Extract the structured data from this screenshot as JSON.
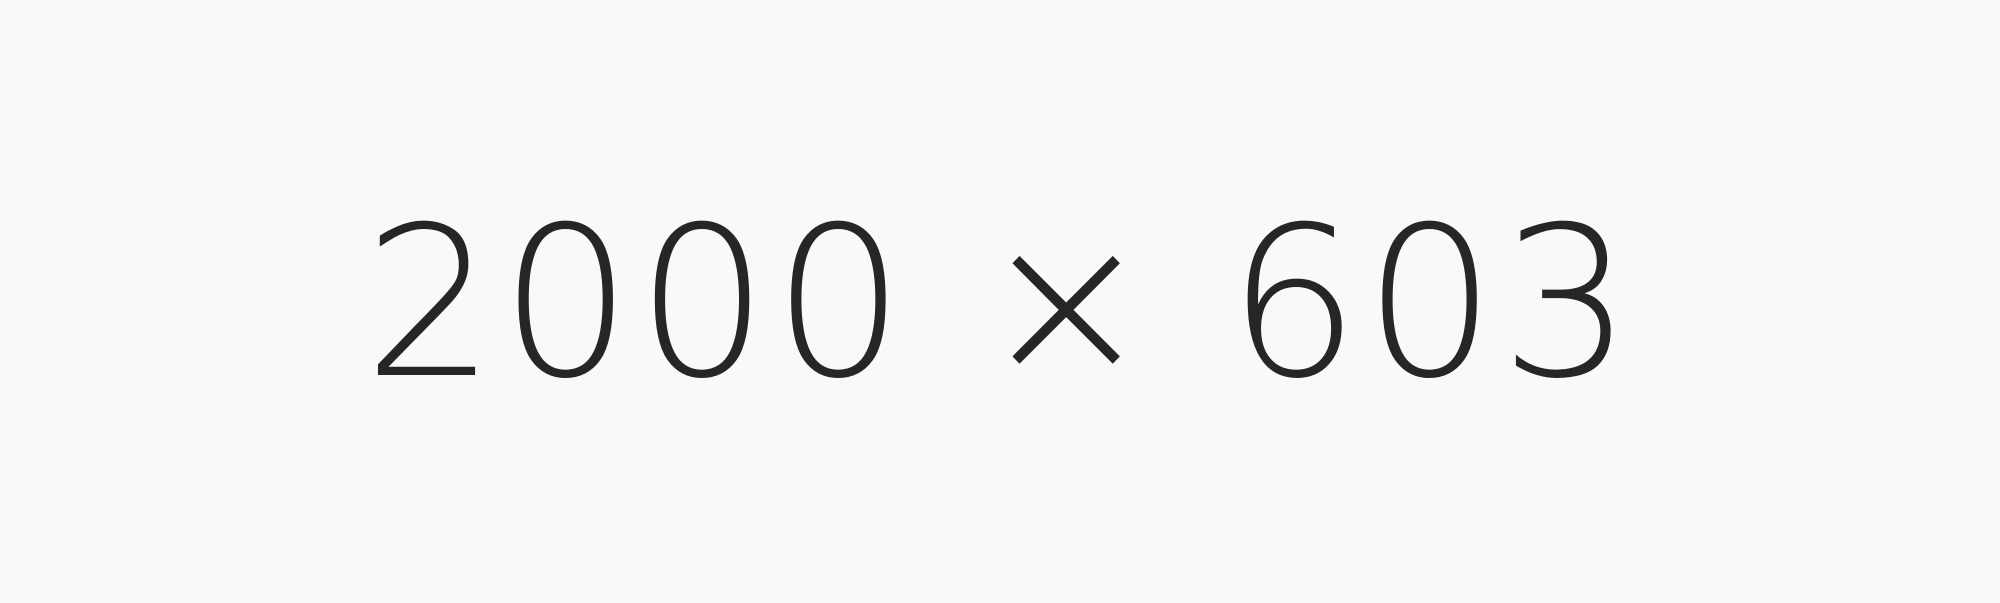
{
  "placeholder": {
    "text": "2000 × 603",
    "background_color": "#f9f9f9",
    "text_color": "#262626"
  }
}
